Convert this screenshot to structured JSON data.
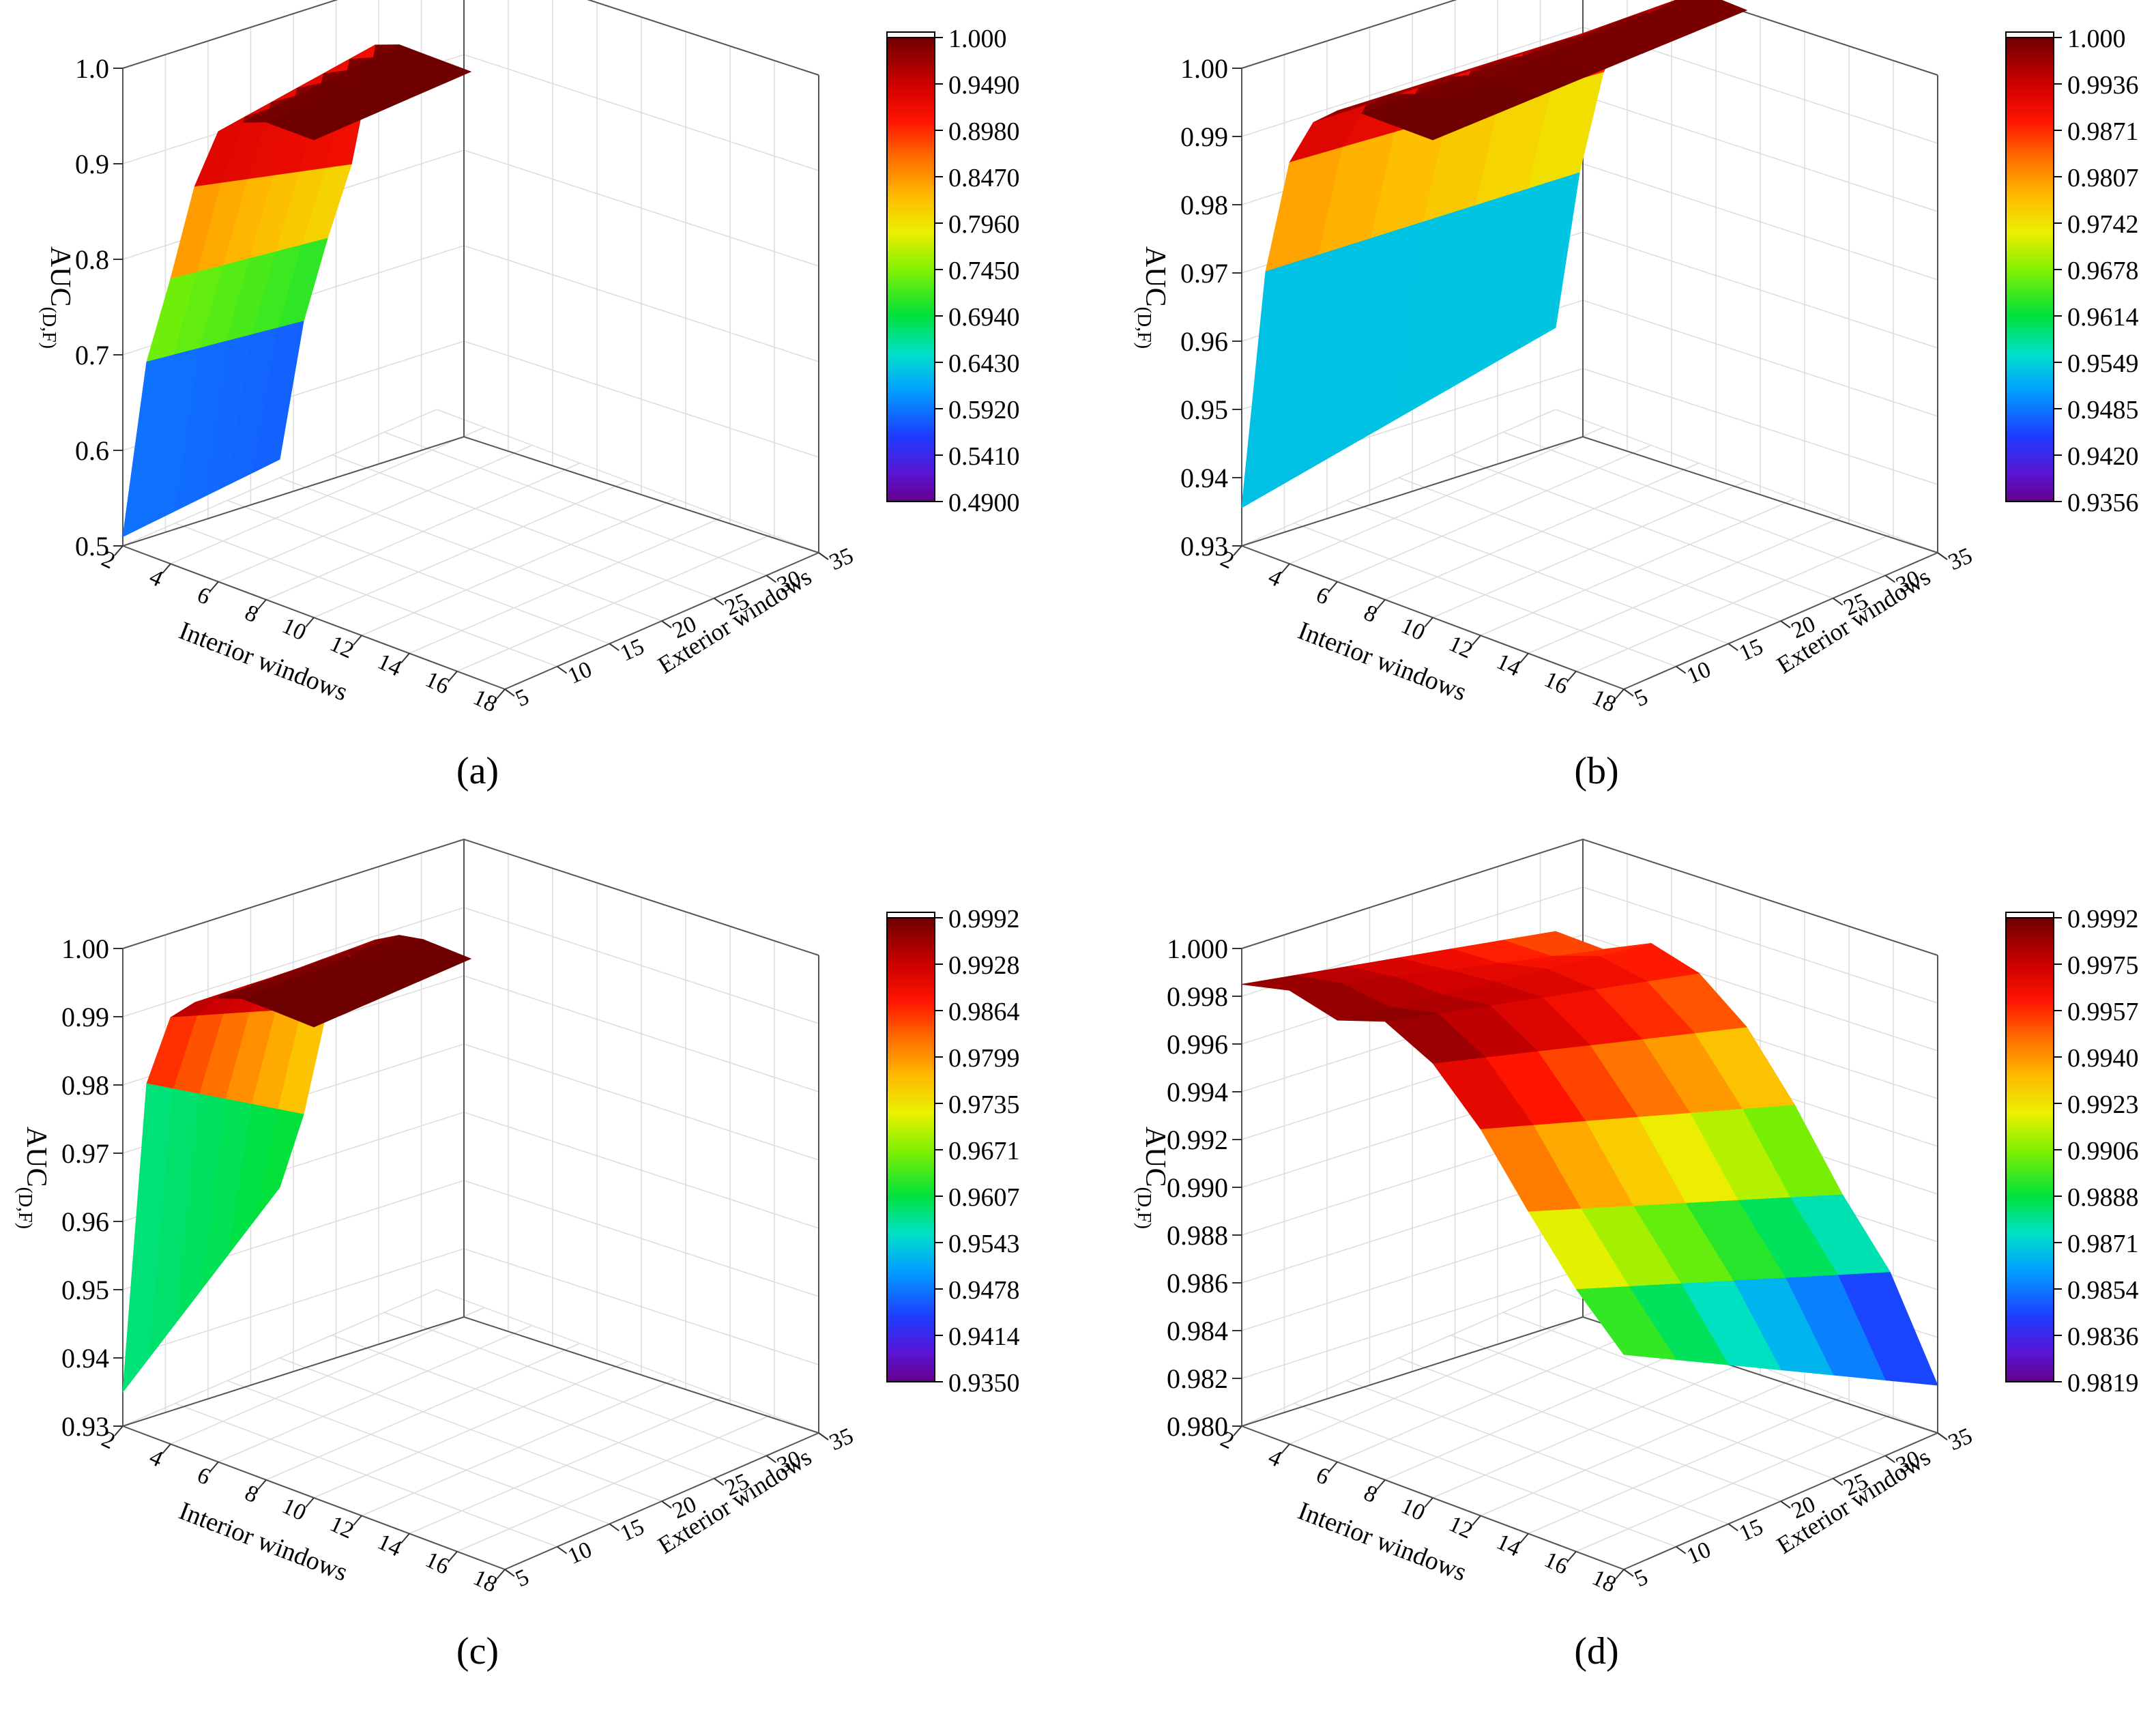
{
  "chart_data": [
    {
      "type": "surface3d",
      "panel_label": "(a)",
      "zlabel": "AUC",
      "zlabel_sub": "(D,F)",
      "xlabel": "Interior windows",
      "ylabel": "Exterior windows",
      "x_ticks": [
        "2",
        "4",
        "6",
        "8",
        "10",
        "12",
        "14",
        "16",
        "18"
      ],
      "y_ticks": [
        "5",
        "10",
        "15",
        "20",
        "25",
        "30",
        "35"
      ],
      "z_ticks": [
        "0.5",
        "0.6",
        "0.7",
        "0.8",
        "0.9",
        "1.0"
      ],
      "zlim": [
        0.48,
        1.0
      ],
      "colorbar_ticks": [
        "1.000",
        "0.9490",
        "0.8980",
        "0.8470",
        "0.7960",
        "0.7450",
        "0.6940",
        "0.6430",
        "0.5920",
        "0.5410",
        "0.4900"
      ],
      "colorbar_range": [
        0.49,
        1.0
      ],
      "interior": [
        2,
        3,
        4,
        5,
        6,
        7,
        8,
        10
      ],
      "exterior": [
        5,
        20
      ],
      "auc": [
        [
          0.49,
          0.5
        ],
        [
          0.69,
          0.66
        ],
        [
          0.79,
          0.76
        ],
        [
          0.9,
          0.85
        ],
        [
          0.97,
          0.99
        ],
        [
          0.99,
          1.0
        ],
        [
          1.0,
          1.0
        ],
        [
          1.0,
          1.0
        ]
      ]
    },
    {
      "type": "surface3d",
      "panel_label": "(b)",
      "zlabel": "AUC",
      "zlabel_sub": "(D,F)",
      "xlabel": "Interior windows",
      "ylabel": "Exterior windows",
      "x_ticks": [
        "2",
        "4",
        "6",
        "8",
        "10",
        "12",
        "14",
        "16",
        "18"
      ],
      "y_ticks": [
        "5",
        "10",
        "15",
        "20",
        "25",
        "30",
        "35"
      ],
      "z_ticks": [
        "0.93",
        "0.94",
        "0.95",
        "0.96",
        "0.97",
        "0.98",
        "0.99",
        "1.00"
      ],
      "zlim": [
        0.93,
        1.0
      ],
      "colorbar_ticks": [
        "1.000",
        "0.9936",
        "0.9871",
        "0.9807",
        "0.9742",
        "0.9678",
        "0.9614",
        "0.9549",
        "0.9485",
        "0.9420",
        "0.9356"
      ],
      "colorbar_range": [
        0.9356,
        1.0
      ],
      "interior": [
        2,
        3,
        4,
        5,
        6,
        7,
        8,
        10
      ],
      "exterior": [
        5,
        35
      ],
      "auc": [
        [
          0.9356,
          0.942
        ],
        [
          0.9715,
          0.966
        ],
        [
          0.9888,
          0.982
        ],
        [
          0.996,
          0.991
        ],
        [
          0.999,
          0.9935
        ],
        [
          1.0,
          0.9965
        ],
        [
          1.0,
          0.9992
        ],
        [
          1.0,
          0.999
        ]
      ]
    },
    {
      "type": "surface3d",
      "panel_label": "(c)",
      "zlabel": "AUC",
      "zlabel_sub": "(D,F)",
      "xlabel": "Interior windows",
      "ylabel": "Exterior windows",
      "x_ticks": [
        "2",
        "4",
        "6",
        "8",
        "10",
        "12",
        "14",
        "16",
        "18"
      ],
      "y_ticks": [
        "5",
        "10",
        "15",
        "20",
        "25",
        "30",
        "35"
      ],
      "z_ticks": [
        "0.93",
        "0.94",
        "0.95",
        "0.96",
        "0.97",
        "0.98",
        "0.99",
        "1.00"
      ],
      "zlim": [
        0.93,
        1.0
      ],
      "colorbar_ticks": [
        "0.9992",
        "0.9928",
        "0.9864",
        "0.9799",
        "0.9735",
        "0.9671",
        "0.9607",
        "0.9543",
        "0.9478",
        "0.9414",
        "0.9350"
      ],
      "colorbar_range": [
        0.935,
        0.9992
      ],
      "interior": [
        2,
        3,
        4,
        5,
        6,
        7,
        8,
        10
      ],
      "exterior": [
        5,
        20
      ],
      "auc": [
        [
          0.935,
          0.955
        ],
        [
          0.9815,
          0.967
        ],
        [
          0.9925,
          0.984
        ],
        [
          0.996,
          0.9935
        ],
        [
          0.998,
          0.9965
        ],
        [
          0.9992,
          0.9985
        ],
        [
          0.9992,
          0.9992
        ],
        [
          0.999,
          0.999
        ]
      ]
    },
    {
      "type": "surface3d",
      "panel_label": "(d)",
      "zlabel": "AUC",
      "zlabel_sub": "(D,F)",
      "xlabel": "Interior windows",
      "ylabel": "Exterior windows",
      "x_ticks": [
        "2",
        "4",
        "6",
        "8",
        "10",
        "12",
        "14",
        "16",
        "18"
      ],
      "y_ticks": [
        "5",
        "10",
        "15",
        "20",
        "25",
        "30",
        "35"
      ],
      "z_ticks": [
        "0.980",
        "0.982",
        "0.984",
        "0.986",
        "0.988",
        "0.990",
        "0.992",
        "0.994",
        "0.996",
        "0.998",
        "1.000"
      ],
      "zlim": [
        0.98,
        1.0
      ],
      "colorbar_ticks": [
        "0.9992",
        "0.9975",
        "0.9957",
        "0.9940",
        "0.9923",
        "0.9906",
        "0.9888",
        "0.9871",
        "0.9854",
        "0.9836",
        "0.9819"
      ],
      "colorbar_range": [
        0.9819,
        0.9992
      ],
      "interior": [
        2,
        4,
        6,
        8,
        10,
        12,
        14,
        16,
        18
      ],
      "exterior": [
        5,
        35
      ],
      "auc": [
        [
          0.9985,
          0.995
        ],
        [
          0.999,
          0.995
        ],
        [
          0.9985,
          0.996
        ],
        [
          0.9992,
          0.9955
        ],
        [
          0.9982,
          0.994
        ],
        [
          0.9962,
          0.9915
        ],
        [
          0.9935,
          0.9885
        ],
        [
          0.991,
          0.986
        ],
        [
          0.989,
          0.982
        ]
      ]
    }
  ]
}
